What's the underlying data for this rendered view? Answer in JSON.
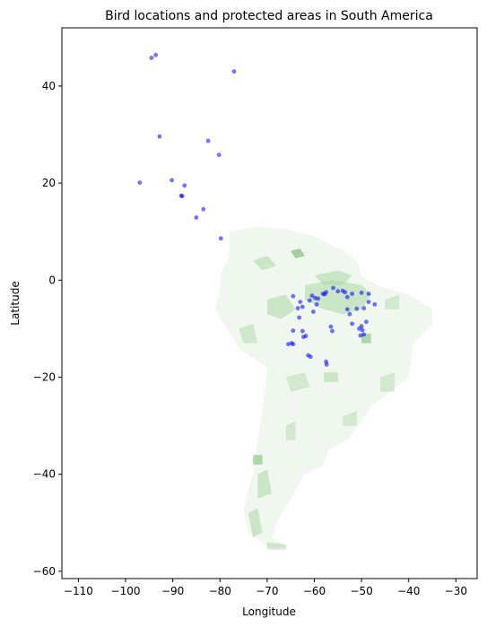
{
  "chart_data": {
    "type": "scatter",
    "title": "Bird locations and protected areas in South America",
    "xlabel": "Longitude",
    "ylabel": "Latitude",
    "xlim": [
      -113.5,
      -25.5
    ],
    "ylim": [
      -61.5,
      52
    ],
    "xticks": [
      -110,
      -100,
      -90,
      -80,
      -70,
      -60,
      -50,
      -40,
      -30
    ],
    "yticks": [
      -60,
      -40,
      -20,
      0,
      20,
      40
    ],
    "xtick_labels": [
      "−110",
      "−100",
      "−90",
      "−80",
      "−70",
      "−60",
      "−50",
      "−40",
      "−30"
    ],
    "ytick_labels": [
      "−60",
      "−40",
      "−20",
      "0",
      "20",
      "40"
    ],
    "grid": false,
    "colors": {
      "birds": "#0000ff",
      "protected_areas": "#a8d5a0"
    },
    "series": [
      {
        "type": "scatter",
        "points": [
          [
            -94.5,
            45.8
          ],
          [
            -93.6,
            46.4
          ],
          [
            -77,
            43
          ],
          [
            -92.8,
            29.6
          ],
          [
            -82.5,
            28.7
          ],
          [
            -80.2,
            25.8
          ],
          [
            -90.2,
            20.6
          ],
          [
            -97,
            20.1
          ],
          [
            -87.5,
            19.5
          ],
          [
            -88.2,
            17.4
          ],
          [
            -88,
            17.3
          ],
          [
            -83.5,
            14.6
          ],
          [
            -85,
            12.9
          ],
          [
            -79.8,
            8.6
          ],
          [
            -64.5,
            -3.3
          ],
          [
            -63,
            -4.5
          ],
          [
            -60.5,
            -3.2
          ],
          [
            -59.2,
            -3.8
          ],
          [
            -58.2,
            -2.8
          ],
          [
            -57.5,
            -2.5
          ],
          [
            -56,
            -1.6
          ],
          [
            -54,
            -2.2
          ],
          [
            -53.5,
            -2.5
          ],
          [
            -52,
            -2.8
          ],
          [
            -50,
            -2.6
          ],
          [
            -48.5,
            -4.5
          ],
          [
            -47.2,
            -5
          ],
          [
            -49.5,
            -5.8
          ],
          [
            -51,
            -5.9
          ],
          [
            -53,
            -6
          ],
          [
            -52.5,
            -7
          ],
          [
            -56.5,
            -9.6
          ],
          [
            -59.5,
            -5
          ],
          [
            -61,
            -4.2
          ],
          [
            -62.5,
            -5.5
          ],
          [
            -63.5,
            -5.8
          ],
          [
            -63.2,
            -7.7
          ],
          [
            -60.2,
            -6.5
          ],
          [
            -59.8,
            -3.7
          ],
          [
            -57.8,
            -2.9
          ],
          [
            -56.2,
            -10.5
          ],
          [
            -52,
            -9
          ],
          [
            -50,
            -9.5
          ],
          [
            -49.8,
            -10.3
          ],
          [
            -50.5,
            -10
          ],
          [
            -49.5,
            -11.2
          ],
          [
            -50.2,
            -11.4
          ],
          [
            -49,
            -8.6
          ],
          [
            -62.5,
            -10.5
          ],
          [
            -62.3,
            -11.7
          ],
          [
            -61.8,
            -11.5
          ],
          [
            -64.5,
            -10.4
          ],
          [
            -64.8,
            -13
          ],
          [
            -65.5,
            -13.2
          ],
          [
            -64.5,
            -13.2
          ],
          [
            -61.3,
            -15.5
          ],
          [
            -60.8,
            -15.8
          ],
          [
            -57.5,
            -16.8
          ],
          [
            -57.4,
            -17.4
          ],
          [
            -53,
            -3.5
          ],
          [
            -48.5,
            -2.8
          ],
          [
            -55,
            -2.3
          ]
        ]
      }
    ]
  }
}
